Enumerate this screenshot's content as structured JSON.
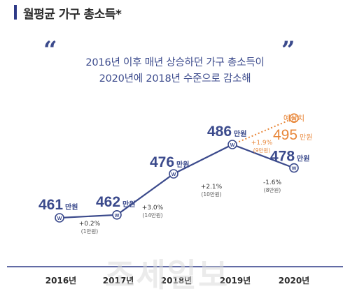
{
  "header": {
    "title": "월평균 가구 총소득*"
  },
  "quote": {
    "line1": "2016년 이후 매년 상승하던 가구 총소득이",
    "line2": "2020년에 2018년 수준으로 감소해"
  },
  "watermark": "조세일보",
  "chart_data": {
    "type": "line",
    "categories": [
      "2016년",
      "2017년",
      "2018년",
      "2019년",
      "2020년"
    ],
    "unit": "만원",
    "series": [
      {
        "values": [
          461,
          462,
          476,
          486,
          478
        ],
        "color": "#3b4a8c"
      }
    ],
    "forecast": {
      "label": "예상치",
      "value": 495,
      "from_index": 3,
      "color": "#e8873a",
      "change_pct": "+1.9%",
      "change_abs": "(9만원)"
    },
    "changes": [
      {
        "pct": "+0.2%",
        "abs": "(1만원)"
      },
      {
        "pct": "+3.0%",
        "abs": "(14만원)"
      },
      {
        "pct": "+2.1%",
        "abs": "(10만원)"
      },
      {
        "pct": "-1.6%",
        "abs": "(8만원)"
      }
    ],
    "won_marker": "W",
    "colors": {
      "line": "#3b4a8c",
      "forecast": "#e8873a",
      "axis": "#2e3a87",
      "muted": "#555555"
    }
  }
}
